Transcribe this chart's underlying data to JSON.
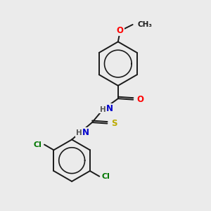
{
  "background_color": "#ebebeb",
  "bond_color": "#1a1a1a",
  "atom_colors": {
    "O": "#ff0000",
    "N": "#0000cc",
    "S": "#bbaa00",
    "Cl": "#007700",
    "C": "#1a1a1a",
    "H": "#555555"
  },
  "figsize": [
    3.0,
    3.0
  ],
  "dpi": 100
}
